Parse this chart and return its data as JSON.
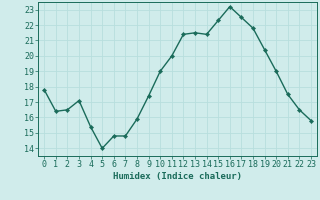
{
  "x": [
    0,
    1,
    2,
    3,
    4,
    5,
    6,
    7,
    8,
    9,
    10,
    11,
    12,
    13,
    14,
    15,
    16,
    17,
    18,
    19,
    20,
    21,
    22,
    23
  ],
  "y": [
    17.8,
    16.4,
    16.5,
    17.1,
    15.4,
    14.0,
    14.8,
    14.8,
    15.9,
    17.4,
    19.0,
    20.0,
    21.4,
    21.5,
    21.4,
    22.3,
    23.2,
    22.5,
    21.8,
    20.4,
    19.0,
    17.5,
    16.5,
    15.8
  ],
  "line_color": "#1a6b5a",
  "marker": "D",
  "marker_size": 2.2,
  "bg_color": "#d0eceb",
  "grid_color": "#b8dedd",
  "axis_color": "#1a6b5a",
  "xlabel": "Humidex (Indice chaleur)",
  "ylim": [
    13.5,
    23.5
  ],
  "xlim": [
    -0.5,
    23.5
  ],
  "yticks": [
    14,
    15,
    16,
    17,
    18,
    19,
    20,
    21,
    22,
    23
  ],
  "xticks": [
    0,
    1,
    2,
    3,
    4,
    5,
    6,
    7,
    8,
    9,
    10,
    11,
    12,
    13,
    14,
    15,
    16,
    17,
    18,
    19,
    20,
    21,
    22,
    23
  ],
  "xlabel_fontsize": 6.5,
  "tick_fontsize": 6.0,
  "linewidth": 1.0
}
